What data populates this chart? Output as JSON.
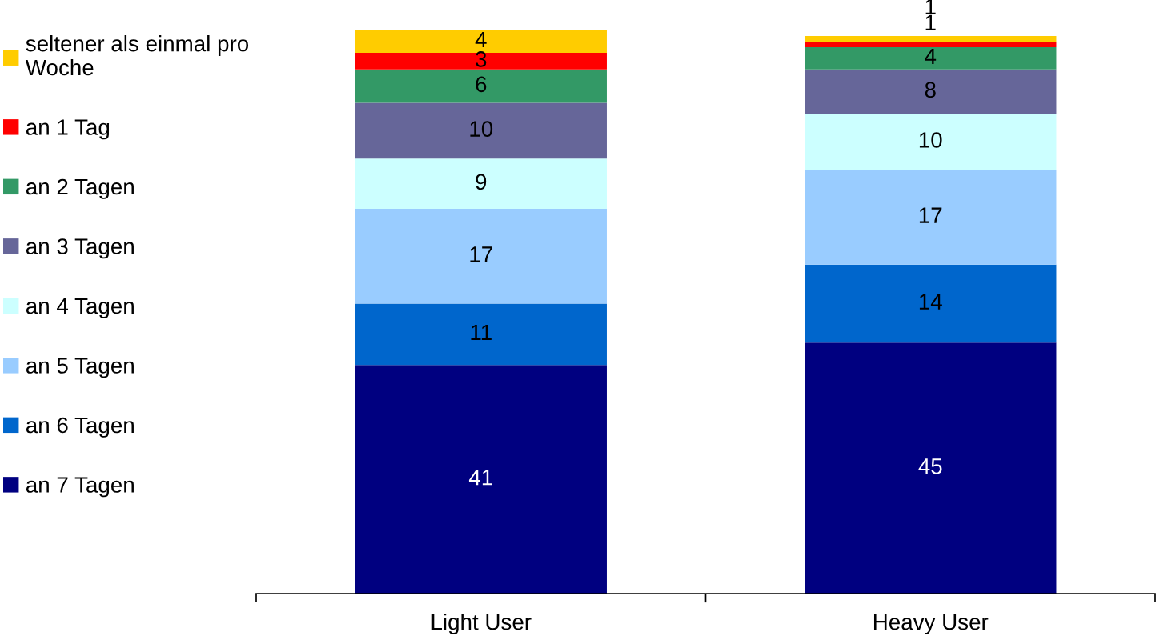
{
  "chart_data": {
    "type": "bar",
    "stacked": true,
    "categories": [
      "Light User",
      "Heavy User"
    ],
    "series": [
      {
        "name": "an 7 Tagen",
        "color": "#000080",
        "values": [
          41,
          45
        ]
      },
      {
        "name": "an 6 Tagen",
        "color": "#0066cc",
        "values": [
          11,
          14
        ]
      },
      {
        "name": "an 5 Tagen",
        "color": "#99ccff",
        "values": [
          17,
          17
        ]
      },
      {
        "name": "an 4 Tagen",
        "color": "#ccffff",
        "values": [
          9,
          10
        ]
      },
      {
        "name": "an 3 Tagen",
        "color": "#666699",
        "values": [
          10,
          8
        ]
      },
      {
        "name": "an 2 Tagen",
        "color": "#339966",
        "values": [
          6,
          4
        ]
      },
      {
        "name": "an 1 Tag",
        "color": "#ff0000",
        "values": [
          3,
          1
        ]
      },
      {
        "name": "seltener als einmal pro Woche",
        "color": "#ffcc00",
        "values": [
          4,
          1
        ]
      }
    ],
    "data_labels": true,
    "legend": "left",
    "tick_labels": "x"
  }
}
